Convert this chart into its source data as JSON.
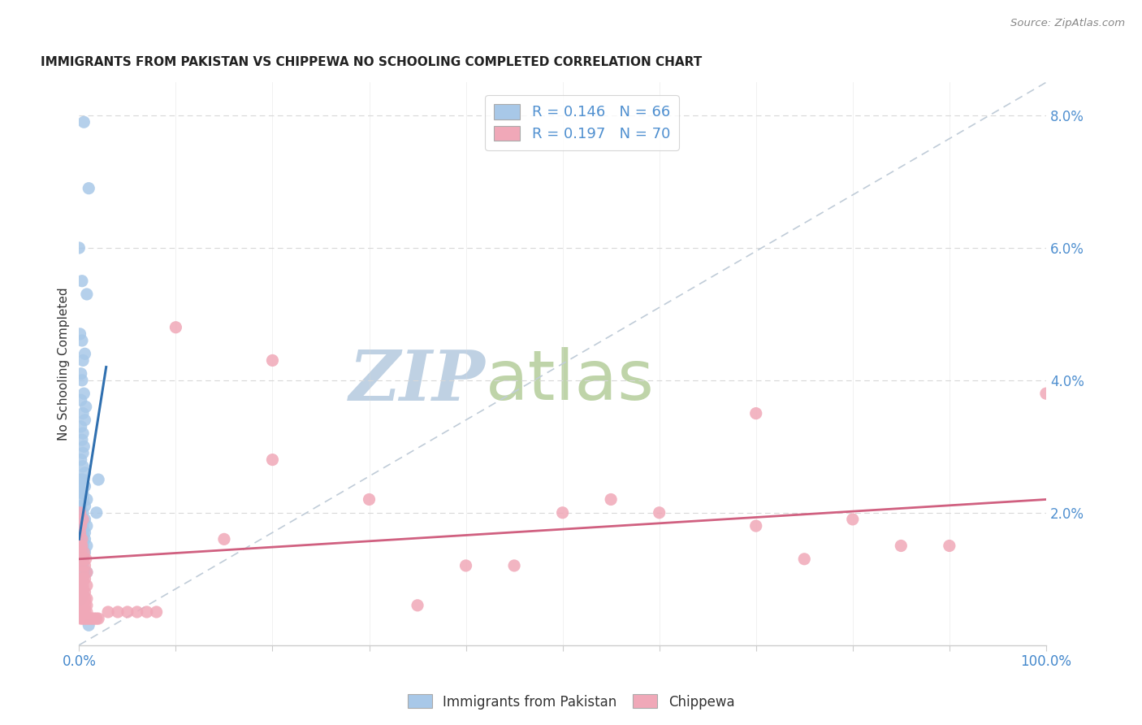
{
  "title": "IMMIGRANTS FROM PAKISTAN VS CHIPPEWA NO SCHOOLING COMPLETED CORRELATION CHART",
  "source": "Source: ZipAtlas.com",
  "ylabel": "No Schooling Completed",
  "legend_label1": "Immigrants from Pakistan",
  "legend_label2": "Chippewa",
  "R1": 0.146,
  "N1": 66,
  "R2": 0.197,
  "N2": 70,
  "blue_color": "#a8c8e8",
  "pink_color": "#f0a8b8",
  "trend_blue": "#3070b0",
  "trend_pink": "#d06080",
  "watermark_zip_color": "#b8cce0",
  "watermark_atlas_color": "#c8d8a0",
  "grid_color": "#d8d8d8",
  "axis_color": "#cccccc",
  "right_tick_color": "#5090d0",
  "xlim": [
    0,
    1.0
  ],
  "ylim": [
    0,
    0.085
  ],
  "figsize": [
    14.06,
    8.92
  ],
  "dpi": 100,
  "blue_x": [
    0.005,
    0.01,
    0.0,
    0.003,
    0.008,
    0.001,
    0.003,
    0.006,
    0.004,
    0.002,
    0.003,
    0.005,
    0.002,
    0.007,
    0.004,
    0.006,
    0.002,
    0.004,
    0.003,
    0.005,
    0.004,
    0.002,
    0.004,
    0.006,
    0.002,
    0.004,
    0.002,
    0.006,
    0.004,
    0.002,
    0.008,
    0.004,
    0.002,
    0.006,
    0.004,
    0.002,
    0.006,
    0.004,
    0.002,
    0.008,
    0.004,
    0.002,
    0.006,
    0.004,
    0.002,
    0.006,
    0.004,
    0.002,
    0.008,
    0.004,
    0.002,
    0.006,
    0.004,
    0.002,
    0.002,
    0.004,
    0.006,
    0.008,
    0.002,
    0.004,
    0.002,
    0.004,
    0.002,
    0.02,
    0.018,
    0.01
  ],
  "blue_y": [
    0.079,
    0.069,
    0.06,
    0.055,
    0.053,
    0.047,
    0.046,
    0.044,
    0.043,
    0.041,
    0.04,
    0.038,
    0.037,
    0.036,
    0.035,
    0.034,
    0.033,
    0.032,
    0.031,
    0.03,
    0.029,
    0.028,
    0.027,
    0.026,
    0.025,
    0.025,
    0.024,
    0.024,
    0.023,
    0.023,
    0.022,
    0.022,
    0.021,
    0.021,
    0.02,
    0.02,
    0.019,
    0.019,
    0.019,
    0.018,
    0.018,
    0.018,
    0.017,
    0.017,
    0.017,
    0.016,
    0.016,
    0.015,
    0.015,
    0.015,
    0.014,
    0.014,
    0.013,
    0.013,
    0.012,
    0.012,
    0.011,
    0.011,
    0.01,
    0.01,
    0.009,
    0.008,
    0.007,
    0.025,
    0.02,
    0.003
  ],
  "pink_x": [
    0.001,
    0.002,
    0.001,
    0.004,
    0.003,
    0.002,
    0.005,
    0.003,
    0.007,
    0.002,
    0.004,
    0.006,
    0.002,
    0.004,
    0.008,
    0.002,
    0.006,
    0.004,
    0.002,
    0.008,
    0.004,
    0.002,
    0.006,
    0.004,
    0.008,
    0.002,
    0.004,
    0.006,
    0.002,
    0.004,
    0.006,
    0.008,
    0.002,
    0.004,
    0.006,
    0.008,
    0.002,
    0.004,
    0.006,
    0.008,
    0.01,
    0.012,
    0.014,
    0.016,
    0.018,
    0.02,
    0.03,
    0.04,
    0.05,
    0.06,
    0.07,
    0.08,
    0.1,
    0.2,
    0.2,
    0.15,
    0.3,
    0.35,
    0.4,
    0.45,
    0.5,
    0.55,
    0.6,
    0.7,
    0.7,
    0.75,
    0.8,
    0.85,
    0.9,
    1.0
  ],
  "pink_y": [
    0.02,
    0.018,
    0.017,
    0.019,
    0.016,
    0.015,
    0.014,
    0.015,
    0.013,
    0.014,
    0.013,
    0.012,
    0.012,
    0.011,
    0.011,
    0.01,
    0.01,
    0.01,
    0.009,
    0.009,
    0.009,
    0.008,
    0.008,
    0.008,
    0.007,
    0.007,
    0.007,
    0.007,
    0.006,
    0.006,
    0.006,
    0.006,
    0.005,
    0.005,
    0.005,
    0.005,
    0.004,
    0.004,
    0.004,
    0.004,
    0.004,
    0.004,
    0.004,
    0.004,
    0.004,
    0.004,
    0.005,
    0.005,
    0.005,
    0.005,
    0.005,
    0.005,
    0.048,
    0.043,
    0.028,
    0.016,
    0.022,
    0.006,
    0.012,
    0.012,
    0.02,
    0.022,
    0.02,
    0.035,
    0.018,
    0.013,
    0.019,
    0.015,
    0.015,
    0.038
  ],
  "blue_trend_x": [
    0.0,
    0.028
  ],
  "blue_trend_y": [
    0.016,
    0.042
  ],
  "pink_trend_x": [
    0.0,
    1.0
  ],
  "pink_trend_y": [
    0.013,
    0.022
  ]
}
